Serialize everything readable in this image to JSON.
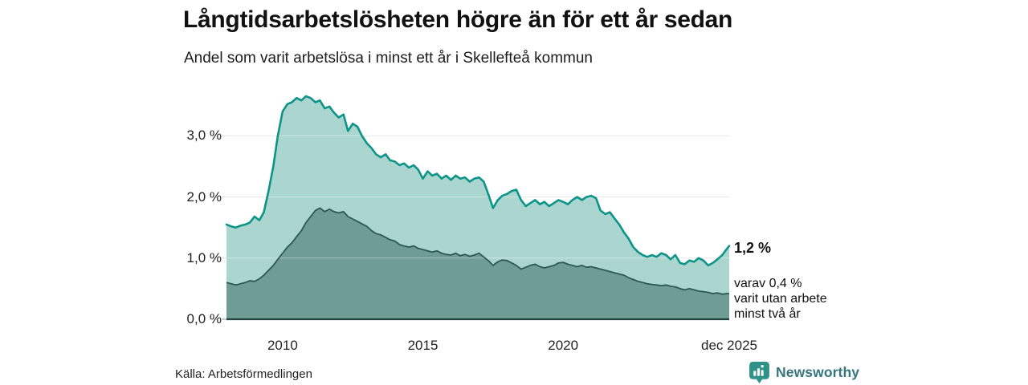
{
  "header": {
    "title": "Långtidsarbetslösheten högre än för ett år sedan",
    "subtitle": "Andel som varit arbetslösa i minst ett år i Skellefteå kommun"
  },
  "annotations": {
    "latest_value": "1,2 %",
    "note_line1": "varav 0,4 %",
    "note_line2": "varit utan arbete",
    "note_line3": "minst två år"
  },
  "footer": {
    "source": "Källa: Arbetsförmedlingen",
    "brand": "Newsworthy"
  },
  "colors": {
    "line_total": "#0d9488",
    "fill_total": "#abd6cf",
    "line_two_years": "#2e5951",
    "fill_two_years": "#6f9c95",
    "gridline": "#dcdcdc",
    "gridline_overlay": "rgba(255,255,255,0.40)",
    "baseline": "#24443f",
    "tick": "#999999",
    "brand_teal": "#2f9288"
  },
  "chart_data": {
    "type": "area",
    "title": "Långtidsarbetslösheten högre än för ett år sedan",
    "subtitle": "Andel som varit arbetslösa i minst ett år i Skellefteå kommun",
    "xlabel": "",
    "ylabel": "",
    "x_range": [
      2008.0,
      2025.92
    ],
    "y_range": [
      0,
      3.9
    ],
    "grid": true,
    "legend": "none",
    "x_ticks": [
      {
        "label": "2010",
        "x": 2010
      },
      {
        "label": "2015",
        "x": 2015
      },
      {
        "label": "2020",
        "x": 2020
      },
      {
        "label": "dec 2025",
        "x": 2025.92
      }
    ],
    "y_ticks": [
      {
        "label": "0,0 %",
        "value": 0
      },
      {
        "label": "1,0 %",
        "value": 1
      },
      {
        "label": "2,0 %",
        "value": 2
      },
      {
        "label": "3,0 %",
        "value": 3
      }
    ],
    "series": [
      {
        "name": "Arbetslösa minst ett år",
        "color": "#0d9488",
        "fill": "#abd6cf",
        "points": [
          [
            2008.0,
            1.55
          ],
          [
            2008.17,
            1.52
          ],
          [
            2008.33,
            1.5
          ],
          [
            2008.5,
            1.53
          ],
          [
            2008.67,
            1.55
          ],
          [
            2008.83,
            1.58
          ],
          [
            2009.0,
            1.68
          ],
          [
            2009.17,
            1.62
          ],
          [
            2009.33,
            1.75
          ],
          [
            2009.5,
            2.1
          ],
          [
            2009.67,
            2.5
          ],
          [
            2009.83,
            3.0
          ],
          [
            2010.0,
            3.4
          ],
          [
            2010.17,
            3.52
          ],
          [
            2010.33,
            3.55
          ],
          [
            2010.5,
            3.62
          ],
          [
            2010.67,
            3.58
          ],
          [
            2010.83,
            3.65
          ],
          [
            2011.0,
            3.62
          ],
          [
            2011.17,
            3.55
          ],
          [
            2011.33,
            3.58
          ],
          [
            2011.5,
            3.45
          ],
          [
            2011.67,
            3.48
          ],
          [
            2011.83,
            3.38
          ],
          [
            2012.0,
            3.3
          ],
          [
            2012.17,
            3.35
          ],
          [
            2012.33,
            3.08
          ],
          [
            2012.5,
            3.2
          ],
          [
            2012.67,
            3.15
          ],
          [
            2012.83,
            3.0
          ],
          [
            2013.0,
            2.88
          ],
          [
            2013.17,
            2.8
          ],
          [
            2013.33,
            2.7
          ],
          [
            2013.5,
            2.65
          ],
          [
            2013.67,
            2.7
          ],
          [
            2013.83,
            2.6
          ],
          [
            2014.0,
            2.58
          ],
          [
            2014.17,
            2.52
          ],
          [
            2014.33,
            2.55
          ],
          [
            2014.5,
            2.48
          ],
          [
            2014.67,
            2.52
          ],
          [
            2014.83,
            2.45
          ],
          [
            2015.0,
            2.3
          ],
          [
            2015.17,
            2.42
          ],
          [
            2015.33,
            2.35
          ],
          [
            2015.5,
            2.38
          ],
          [
            2015.67,
            2.3
          ],
          [
            2015.83,
            2.35
          ],
          [
            2016.0,
            2.28
          ],
          [
            2016.17,
            2.35
          ],
          [
            2016.33,
            2.3
          ],
          [
            2016.5,
            2.32
          ],
          [
            2016.67,
            2.25
          ],
          [
            2016.83,
            2.3
          ],
          [
            2017.0,
            2.32
          ],
          [
            2017.17,
            2.25
          ],
          [
            2017.33,
            2.05
          ],
          [
            2017.5,
            1.82
          ],
          [
            2017.67,
            1.95
          ],
          [
            2017.83,
            2.02
          ],
          [
            2018.0,
            2.05
          ],
          [
            2018.17,
            2.1
          ],
          [
            2018.33,
            2.12
          ],
          [
            2018.5,
            1.95
          ],
          [
            2018.67,
            1.85
          ],
          [
            2018.83,
            1.9
          ],
          [
            2019.0,
            1.95
          ],
          [
            2019.17,
            1.88
          ],
          [
            2019.33,
            1.92
          ],
          [
            2019.5,
            1.85
          ],
          [
            2019.67,
            1.9
          ],
          [
            2019.83,
            1.95
          ],
          [
            2020.0,
            1.92
          ],
          [
            2020.17,
            1.88
          ],
          [
            2020.33,
            1.95
          ],
          [
            2020.5,
            2.0
          ],
          [
            2020.67,
            1.95
          ],
          [
            2020.83,
            2.0
          ],
          [
            2021.0,
            2.02
          ],
          [
            2021.17,
            1.98
          ],
          [
            2021.33,
            1.78
          ],
          [
            2021.5,
            1.72
          ],
          [
            2021.67,
            1.75
          ],
          [
            2021.83,
            1.65
          ],
          [
            2022.0,
            1.55
          ],
          [
            2022.17,
            1.42
          ],
          [
            2022.33,
            1.32
          ],
          [
            2022.5,
            1.18
          ],
          [
            2022.67,
            1.1
          ],
          [
            2022.83,
            1.05
          ],
          [
            2023.0,
            1.02
          ],
          [
            2023.17,
            1.05
          ],
          [
            2023.33,
            1.02
          ],
          [
            2023.5,
            1.08
          ],
          [
            2023.67,
            1.05
          ],
          [
            2023.83,
            0.98
          ],
          [
            2024.0,
            1.05
          ],
          [
            2024.17,
            0.92
          ],
          [
            2024.33,
            0.9
          ],
          [
            2024.5,
            0.96
          ],
          [
            2024.67,
            0.94
          ],
          [
            2024.83,
            1.0
          ],
          [
            2025.0,
            0.96
          ],
          [
            2025.17,
            0.88
          ],
          [
            2025.33,
            0.92
          ],
          [
            2025.5,
            0.98
          ],
          [
            2025.67,
            1.05
          ],
          [
            2025.83,
            1.15
          ],
          [
            2025.92,
            1.2
          ]
        ]
      },
      {
        "name": "Arbetslösa minst två år",
        "color": "#2e5951",
        "fill": "#6f9c95",
        "points": [
          [
            2008.0,
            0.6
          ],
          [
            2008.17,
            0.58
          ],
          [
            2008.33,
            0.56
          ],
          [
            2008.5,
            0.58
          ],
          [
            2008.67,
            0.6
          ],
          [
            2008.83,
            0.63
          ],
          [
            2009.0,
            0.62
          ],
          [
            2009.17,
            0.66
          ],
          [
            2009.33,
            0.72
          ],
          [
            2009.5,
            0.8
          ],
          [
            2009.67,
            0.88
          ],
          [
            2009.83,
            0.98
          ],
          [
            2010.0,
            1.08
          ],
          [
            2010.17,
            1.18
          ],
          [
            2010.33,
            1.25
          ],
          [
            2010.5,
            1.35
          ],
          [
            2010.67,
            1.45
          ],
          [
            2010.83,
            1.58
          ],
          [
            2011.0,
            1.68
          ],
          [
            2011.17,
            1.78
          ],
          [
            2011.33,
            1.82
          ],
          [
            2011.5,
            1.76
          ],
          [
            2011.67,
            1.8
          ],
          [
            2011.83,
            1.76
          ],
          [
            2012.0,
            1.74
          ],
          [
            2012.17,
            1.76
          ],
          [
            2012.33,
            1.68
          ],
          [
            2012.5,
            1.64
          ],
          [
            2012.67,
            1.6
          ],
          [
            2012.83,
            1.56
          ],
          [
            2013.0,
            1.52
          ],
          [
            2013.17,
            1.45
          ],
          [
            2013.33,
            1.4
          ],
          [
            2013.5,
            1.38
          ],
          [
            2013.67,
            1.34
          ],
          [
            2013.83,
            1.3
          ],
          [
            2014.0,
            1.28
          ],
          [
            2014.17,
            1.22
          ],
          [
            2014.33,
            1.2
          ],
          [
            2014.5,
            1.18
          ],
          [
            2014.67,
            1.2
          ],
          [
            2014.83,
            1.16
          ],
          [
            2015.0,
            1.14
          ],
          [
            2015.17,
            1.12
          ],
          [
            2015.33,
            1.1
          ],
          [
            2015.5,
            1.12
          ],
          [
            2015.67,
            1.08
          ],
          [
            2015.83,
            1.06
          ],
          [
            2016.0,
            1.05
          ],
          [
            2016.17,
            1.08
          ],
          [
            2016.33,
            1.04
          ],
          [
            2016.5,
            1.06
          ],
          [
            2016.67,
            1.03
          ],
          [
            2016.83,
            1.05
          ],
          [
            2017.0,
            1.08
          ],
          [
            2017.17,
            1.02
          ],
          [
            2017.33,
            0.96
          ],
          [
            2017.5,
            0.88
          ],
          [
            2017.67,
            0.94
          ],
          [
            2017.83,
            0.97
          ],
          [
            2018.0,
            0.96
          ],
          [
            2018.17,
            0.92
          ],
          [
            2018.33,
            0.88
          ],
          [
            2018.5,
            0.82
          ],
          [
            2018.67,
            0.85
          ],
          [
            2018.83,
            0.88
          ],
          [
            2019.0,
            0.9
          ],
          [
            2019.17,
            0.86
          ],
          [
            2019.33,
            0.84
          ],
          [
            2019.5,
            0.86
          ],
          [
            2019.67,
            0.88
          ],
          [
            2019.83,
            0.92
          ],
          [
            2020.0,
            0.93
          ],
          [
            2020.17,
            0.9
          ],
          [
            2020.33,
            0.88
          ],
          [
            2020.5,
            0.86
          ],
          [
            2020.67,
            0.88
          ],
          [
            2020.83,
            0.85
          ],
          [
            2021.0,
            0.86
          ],
          [
            2021.17,
            0.84
          ],
          [
            2021.33,
            0.82
          ],
          [
            2021.5,
            0.8
          ],
          [
            2021.67,
            0.78
          ],
          [
            2021.83,
            0.76
          ],
          [
            2022.0,
            0.74
          ],
          [
            2022.17,
            0.72
          ],
          [
            2022.33,
            0.68
          ],
          [
            2022.5,
            0.65
          ],
          [
            2022.67,
            0.62
          ],
          [
            2022.83,
            0.6
          ],
          [
            2023.0,
            0.58
          ],
          [
            2023.17,
            0.57
          ],
          [
            2023.33,
            0.56
          ],
          [
            2023.5,
            0.55
          ],
          [
            2023.67,
            0.56
          ],
          [
            2023.83,
            0.54
          ],
          [
            2024.0,
            0.53
          ],
          [
            2024.17,
            0.5
          ],
          [
            2024.33,
            0.48
          ],
          [
            2024.5,
            0.5
          ],
          [
            2024.67,
            0.48
          ],
          [
            2024.83,
            0.46
          ],
          [
            2025.0,
            0.45
          ],
          [
            2025.17,
            0.44
          ],
          [
            2025.33,
            0.42
          ],
          [
            2025.5,
            0.43
          ],
          [
            2025.67,
            0.41
          ],
          [
            2025.83,
            0.42
          ],
          [
            2025.92,
            0.42
          ]
        ]
      }
    ]
  }
}
